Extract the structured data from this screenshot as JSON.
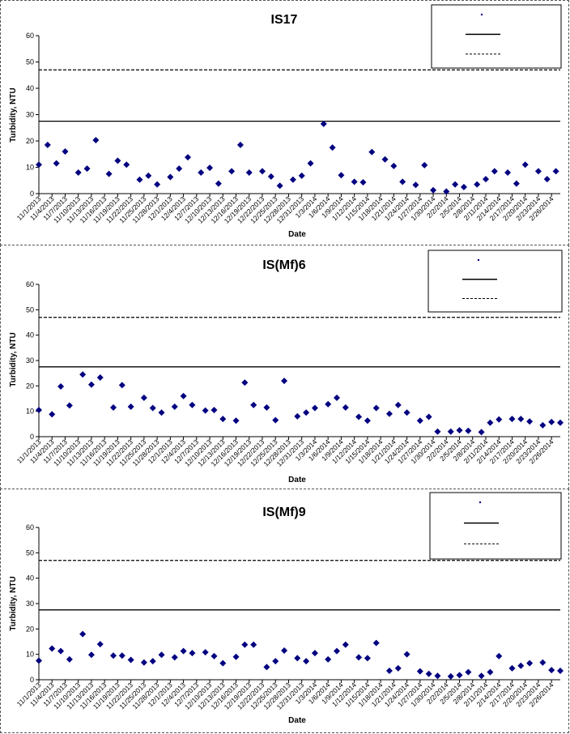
{
  "x_dates": [
    "11/1/2013",
    "11/4/2013",
    "11/7/2013",
    "11/10/2013",
    "11/13/2013",
    "11/16/2013",
    "11/19/2013",
    "11/22/2013",
    "11/25/2013",
    "11/28/2013",
    "12/1/2013",
    "12/4/2013",
    "12/7/2013",
    "12/10/2013",
    "12/13/2013",
    "12/16/2013",
    "12/19/2013",
    "12/22/2013",
    "12/25/2013",
    "12/28/2013",
    "12/31/2013",
    "1/3/2014",
    "1/6/2014",
    "1/9/2014",
    "1/12/2014",
    "1/15/2014",
    "1/18/2014",
    "1/21/2014",
    "1/24/2014",
    "1/27/2014",
    "1/30/2014",
    "2/2/2014",
    "2/5/2014",
    "2/8/2014",
    "2/11/2014",
    "2/14/2014",
    "2/17/2014",
    "2/20/2014",
    "2/23/2014",
    "2/26/2014"
  ],
  "chart_data": [
    {
      "type": "scatter",
      "title": "IS17",
      "xlabel": "Date",
      "ylabel": "Turbidity, NTU",
      "ylim": [
        0,
        60
      ],
      "yticks": [
        0,
        10,
        20,
        30,
        40,
        50,
        60
      ],
      "xlim": [
        "11/1/2013",
        "2/28/2014"
      ],
      "legend_placement": "top-right",
      "marker_color": "#000080",
      "reference_lines": [
        {
          "style": "solid",
          "value": 27.5
        },
        {
          "style": "dashed",
          "value": 47
        }
      ],
      "points": [
        {
          "x": "11/1/2013",
          "y": 11
        },
        {
          "x": "11/3/2013",
          "y": 18.5
        },
        {
          "x": "11/5/2013",
          "y": 11.5
        },
        {
          "x": "11/7/2013",
          "y": 16
        },
        {
          "x": "11/10/2013",
          "y": 8
        },
        {
          "x": "11/12/2013",
          "y": 9.5
        },
        {
          "x": "11/14/2013",
          "y": 20.3
        },
        {
          "x": "11/17/2013",
          "y": 7.5
        },
        {
          "x": "11/19/2013",
          "y": 12.5
        },
        {
          "x": "11/21/2013",
          "y": 11
        },
        {
          "x": "11/24/2013",
          "y": 5.3
        },
        {
          "x": "11/26/2013",
          "y": 6.8
        },
        {
          "x": "11/28/2013",
          "y": 3.5
        },
        {
          "x": "12/1/2013",
          "y": 6.3
        },
        {
          "x": "12/3/2013",
          "y": 9.5
        },
        {
          "x": "12/5/2013",
          "y": 13.8
        },
        {
          "x": "12/8/2013",
          "y": 8
        },
        {
          "x": "12/10/2013",
          "y": 9.8
        },
        {
          "x": "12/12/2013",
          "y": 3.8
        },
        {
          "x": "12/15/2013",
          "y": 8.5
        },
        {
          "x": "12/17/2013",
          "y": 18.5
        },
        {
          "x": "12/19/2013",
          "y": 8
        },
        {
          "x": "12/22/2013",
          "y": 8.5
        },
        {
          "x": "12/24/2013",
          "y": 6.5
        },
        {
          "x": "12/26/2013",
          "y": 3
        },
        {
          "x": "12/29/2013",
          "y": 5.3
        },
        {
          "x": "12/31/2013",
          "y": 6.8
        },
        {
          "x": "1/2/2014",
          "y": 11.5
        },
        {
          "x": "1/5/2014",
          "y": 26.5
        },
        {
          "x": "1/7/2014",
          "y": 17.5
        },
        {
          "x": "1/9/2014",
          "y": 7
        },
        {
          "x": "1/12/2014",
          "y": 4.5
        },
        {
          "x": "1/14/2014",
          "y": 4.3
        },
        {
          "x": "1/16/2014",
          "y": 15.8
        },
        {
          "x": "1/19/2014",
          "y": 13
        },
        {
          "x": "1/21/2014",
          "y": 10.5
        },
        {
          "x": "1/23/2014",
          "y": 4.5
        },
        {
          "x": "1/26/2014",
          "y": 3.3
        },
        {
          "x": "1/28/2014",
          "y": 10.8
        },
        {
          "x": "1/30/2014",
          "y": 1.3
        },
        {
          "x": "2/2/2014",
          "y": 0.8
        },
        {
          "x": "2/4/2014",
          "y": 3.5
        },
        {
          "x": "2/6/2014",
          "y": 2.5
        },
        {
          "x": "2/9/2014",
          "y": 3.5
        },
        {
          "x": "2/11/2014",
          "y": 5.5
        },
        {
          "x": "2/13/2014",
          "y": 8.5
        },
        {
          "x": "2/16/2014",
          "y": 8
        },
        {
          "x": "2/18/2014",
          "y": 3.8
        },
        {
          "x": "2/20/2014",
          "y": 11
        },
        {
          "x": "2/23/2014",
          "y": 8.5
        },
        {
          "x": "2/25/2014",
          "y": 5.5
        },
        {
          "x": "2/27/2014",
          "y": 8.5
        }
      ]
    },
    {
      "type": "scatter",
      "title": "IS(Mf)6",
      "xlabel": "Date",
      "ylabel": "Turbidity, NTU",
      "ylim": [
        0,
        60
      ],
      "yticks": [
        0,
        10,
        20,
        30,
        40,
        50,
        60
      ],
      "xlim": [
        "11/1/2013",
        "2/28/2014"
      ],
      "legend_placement": "top-right",
      "marker_color": "#000080",
      "reference_lines": [
        {
          "style": "solid",
          "value": 27.5
        },
        {
          "style": "dashed",
          "value": 47
        }
      ],
      "points": [
        {
          "x": "11/1/2013",
          "y": 10.5
        },
        {
          "x": "11/4/2013",
          "y": 8.8
        },
        {
          "x": "11/6/2013",
          "y": 19.8
        },
        {
          "x": "11/8/2013",
          "y": 12.3
        },
        {
          "x": "11/11/2013",
          "y": 24.5
        },
        {
          "x": "11/13/2013",
          "y": 20.5
        },
        {
          "x": "11/15/2013",
          "y": 23.3
        },
        {
          "x": "11/18/2013",
          "y": 11.5
        },
        {
          "x": "11/20/2013",
          "y": 20.3
        },
        {
          "x": "11/22/2013",
          "y": 11.8
        },
        {
          "x": "11/25/2013",
          "y": 15.3
        },
        {
          "x": "11/27/2013",
          "y": 11.3
        },
        {
          "x": "11/29/2013",
          "y": 9.5
        },
        {
          "x": "12/2/2013",
          "y": 11.8
        },
        {
          "x": "12/4/2013",
          "y": 16
        },
        {
          "x": "12/6/2013",
          "y": 12.5
        },
        {
          "x": "12/9/2013",
          "y": 10.3
        },
        {
          "x": "12/11/2013",
          "y": 10.5
        },
        {
          "x": "12/13/2013",
          "y": 7
        },
        {
          "x": "12/16/2013",
          "y": 6.3
        },
        {
          "x": "12/18/2013",
          "y": 21.3
        },
        {
          "x": "12/20/2013",
          "y": 12.5
        },
        {
          "x": "12/23/2013",
          "y": 11.5
        },
        {
          "x": "12/25/2013",
          "y": 6.5
        },
        {
          "x": "12/27/2013",
          "y": 22
        },
        {
          "x": "12/30/2013",
          "y": 8
        },
        {
          "x": "1/1/2014",
          "y": 9.5
        },
        {
          "x": "1/3/2014",
          "y": 11.3
        },
        {
          "x": "1/6/2014",
          "y": 12.8
        },
        {
          "x": "1/8/2014",
          "y": 15.3
        },
        {
          "x": "1/10/2014",
          "y": 11.5
        },
        {
          "x": "1/13/2014",
          "y": 7.8
        },
        {
          "x": "1/15/2014",
          "y": 6.3
        },
        {
          "x": "1/17/2014",
          "y": 11.3
        },
        {
          "x": "1/20/2014",
          "y": 9
        },
        {
          "x": "1/22/2014",
          "y": 12.5
        },
        {
          "x": "1/24/2014",
          "y": 9.5
        },
        {
          "x": "1/27/2014",
          "y": 6.3
        },
        {
          "x": "1/29/2014",
          "y": 7.8
        },
        {
          "x": "1/31/2014",
          "y": 2
        },
        {
          "x": "2/3/2014",
          "y": 2
        },
        {
          "x": "2/5/2014",
          "y": 2.5
        },
        {
          "x": "2/7/2014",
          "y": 2.3
        },
        {
          "x": "2/10/2014",
          "y": 1.8
        },
        {
          "x": "2/12/2014",
          "y": 5.5
        },
        {
          "x": "2/14/2014",
          "y": 6.8
        },
        {
          "x": "2/17/2014",
          "y": 7
        },
        {
          "x": "2/19/2014",
          "y": 7
        },
        {
          "x": "2/21/2014",
          "y": 6
        },
        {
          "x": "2/24/2014",
          "y": 4.5
        },
        {
          "x": "2/26/2014",
          "y": 5.8
        },
        {
          "x": "2/28/2014",
          "y": 5.5
        }
      ]
    },
    {
      "type": "scatter",
      "title": "IS(Mf)9",
      "xlabel": "Date",
      "ylabel": "Turbidity, NTU",
      "ylim": [
        0,
        60
      ],
      "yticks": [
        0,
        10,
        20,
        30,
        40,
        50,
        60
      ],
      "xlim": [
        "11/1/2013",
        "2/28/2014"
      ],
      "legend_placement": "top-right",
      "marker_color": "#000080",
      "reference_lines": [
        {
          "style": "solid",
          "value": 27.5
        },
        {
          "style": "dashed",
          "value": 47
        }
      ],
      "points": [
        {
          "x": "11/1/2013",
          "y": 7.5
        },
        {
          "x": "11/4/2013",
          "y": 12.3
        },
        {
          "x": "11/6/2013",
          "y": 11.3
        },
        {
          "x": "11/8/2013",
          "y": 8
        },
        {
          "x": "11/11/2013",
          "y": 18
        },
        {
          "x": "11/13/2013",
          "y": 9.8
        },
        {
          "x": "11/15/2013",
          "y": 14
        },
        {
          "x": "11/18/2013",
          "y": 9.5
        },
        {
          "x": "11/20/2013",
          "y": 9.5
        },
        {
          "x": "11/22/2013",
          "y": 7.8
        },
        {
          "x": "11/25/2013",
          "y": 6.8
        },
        {
          "x": "11/27/2013",
          "y": 7.3
        },
        {
          "x": "11/29/2013",
          "y": 9.8
        },
        {
          "x": "12/2/2013",
          "y": 8.8
        },
        {
          "x": "12/4/2013",
          "y": 11.3
        },
        {
          "x": "12/6/2013",
          "y": 10.5
        },
        {
          "x": "12/9/2013",
          "y": 10.8
        },
        {
          "x": "12/11/2013",
          "y": 9.3
        },
        {
          "x": "12/13/2013",
          "y": 6.5
        },
        {
          "x": "12/16/2013",
          "y": 9
        },
        {
          "x": "12/18/2013",
          "y": 13.8
        },
        {
          "x": "12/20/2013",
          "y": 13.8
        },
        {
          "x": "12/23/2013",
          "y": 5
        },
        {
          "x": "12/25/2013",
          "y": 7.3
        },
        {
          "x": "12/27/2013",
          "y": 11.5
        },
        {
          "x": "12/30/2013",
          "y": 8.5
        },
        {
          "x": "1/1/2014",
          "y": 7.3
        },
        {
          "x": "1/3/2014",
          "y": 10.5
        },
        {
          "x": "1/6/2014",
          "y": 8
        },
        {
          "x": "1/8/2014",
          "y": 11.3
        },
        {
          "x": "1/10/2014",
          "y": 13.8
        },
        {
          "x": "1/13/2014",
          "y": 8.8
        },
        {
          "x": "1/15/2014",
          "y": 8.5
        },
        {
          "x": "1/17/2014",
          "y": 14.5
        },
        {
          "x": "1/20/2014",
          "y": 3.5
        },
        {
          "x": "1/22/2014",
          "y": 4.5
        },
        {
          "x": "1/24/2014",
          "y": 10
        },
        {
          "x": "1/27/2014",
          "y": 3.3
        },
        {
          "x": "1/29/2014",
          "y": 2.3
        },
        {
          "x": "1/31/2014",
          "y": 1.5
        },
        {
          "x": "2/3/2014",
          "y": 1.3
        },
        {
          "x": "2/5/2014",
          "y": 1.8
        },
        {
          "x": "2/7/2014",
          "y": 3
        },
        {
          "x": "2/10/2014",
          "y": 1.5
        },
        {
          "x": "2/12/2014",
          "y": 3
        },
        {
          "x": "2/14/2014",
          "y": 9.3
        },
        {
          "x": "2/17/2014",
          "y": 4.5
        },
        {
          "x": "2/19/2014",
          "y": 5.5
        },
        {
          "x": "2/21/2014",
          "y": 6.5
        },
        {
          "x": "2/24/2014",
          "y": 6.8
        },
        {
          "x": "2/26/2014",
          "y": 3.8
        },
        {
          "x": "2/28/2014",
          "y": 3.5
        }
      ]
    }
  ]
}
